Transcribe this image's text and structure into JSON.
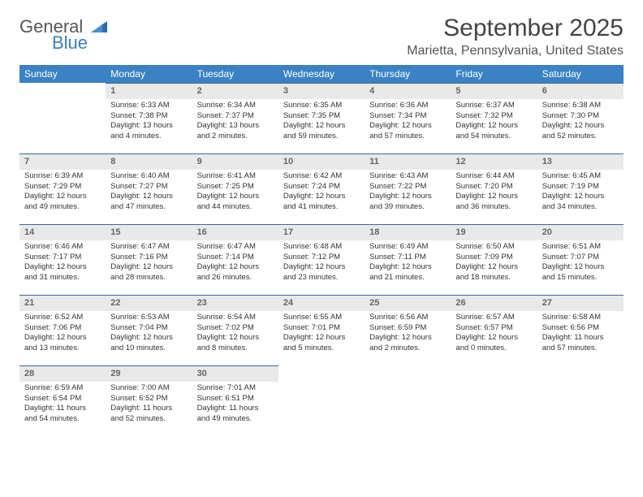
{
  "logo": {
    "word1": "General",
    "word2": "Blue"
  },
  "title": "September 2025",
  "location": "Marietta, Pennsylvania, United States",
  "colors": {
    "header_bg": "#3a82c4",
    "header_text": "#ffffff",
    "daynum_bg": "#e9e9e9",
    "daynum_border": "#3a6a9a",
    "text": "#333333",
    "logo_gray": "#555555",
    "logo_blue": "#3a7ebf"
  },
  "weekdays": [
    "Sunday",
    "Monday",
    "Tuesday",
    "Wednesday",
    "Thursday",
    "Friday",
    "Saturday"
  ],
  "weeks": [
    [
      null,
      {
        "n": "1",
        "sr": "Sunrise: 6:33 AM",
        "ss": "Sunset: 7:38 PM",
        "dl": "Daylight: 13 hours and 4 minutes."
      },
      {
        "n": "2",
        "sr": "Sunrise: 6:34 AM",
        "ss": "Sunset: 7:37 PM",
        "dl": "Daylight: 13 hours and 2 minutes."
      },
      {
        "n": "3",
        "sr": "Sunrise: 6:35 AM",
        "ss": "Sunset: 7:35 PM",
        "dl": "Daylight: 12 hours and 59 minutes."
      },
      {
        "n": "4",
        "sr": "Sunrise: 6:36 AM",
        "ss": "Sunset: 7:34 PM",
        "dl": "Daylight: 12 hours and 57 minutes."
      },
      {
        "n": "5",
        "sr": "Sunrise: 6:37 AM",
        "ss": "Sunset: 7:32 PM",
        "dl": "Daylight: 12 hours and 54 minutes."
      },
      {
        "n": "6",
        "sr": "Sunrise: 6:38 AM",
        "ss": "Sunset: 7:30 PM",
        "dl": "Daylight: 12 hours and 52 minutes."
      }
    ],
    [
      {
        "n": "7",
        "sr": "Sunrise: 6:39 AM",
        "ss": "Sunset: 7:29 PM",
        "dl": "Daylight: 12 hours and 49 minutes."
      },
      {
        "n": "8",
        "sr": "Sunrise: 6:40 AM",
        "ss": "Sunset: 7:27 PM",
        "dl": "Daylight: 12 hours and 47 minutes."
      },
      {
        "n": "9",
        "sr": "Sunrise: 6:41 AM",
        "ss": "Sunset: 7:25 PM",
        "dl": "Daylight: 12 hours and 44 minutes."
      },
      {
        "n": "10",
        "sr": "Sunrise: 6:42 AM",
        "ss": "Sunset: 7:24 PM",
        "dl": "Daylight: 12 hours and 41 minutes."
      },
      {
        "n": "11",
        "sr": "Sunrise: 6:43 AM",
        "ss": "Sunset: 7:22 PM",
        "dl": "Daylight: 12 hours and 39 minutes."
      },
      {
        "n": "12",
        "sr": "Sunrise: 6:44 AM",
        "ss": "Sunset: 7:20 PM",
        "dl": "Daylight: 12 hours and 36 minutes."
      },
      {
        "n": "13",
        "sr": "Sunrise: 6:45 AM",
        "ss": "Sunset: 7:19 PM",
        "dl": "Daylight: 12 hours and 34 minutes."
      }
    ],
    [
      {
        "n": "14",
        "sr": "Sunrise: 6:46 AM",
        "ss": "Sunset: 7:17 PM",
        "dl": "Daylight: 12 hours and 31 minutes."
      },
      {
        "n": "15",
        "sr": "Sunrise: 6:47 AM",
        "ss": "Sunset: 7:16 PM",
        "dl": "Daylight: 12 hours and 28 minutes."
      },
      {
        "n": "16",
        "sr": "Sunrise: 6:47 AM",
        "ss": "Sunset: 7:14 PM",
        "dl": "Daylight: 12 hours and 26 minutes."
      },
      {
        "n": "17",
        "sr": "Sunrise: 6:48 AM",
        "ss": "Sunset: 7:12 PM",
        "dl": "Daylight: 12 hours and 23 minutes."
      },
      {
        "n": "18",
        "sr": "Sunrise: 6:49 AM",
        "ss": "Sunset: 7:11 PM",
        "dl": "Daylight: 12 hours and 21 minutes."
      },
      {
        "n": "19",
        "sr": "Sunrise: 6:50 AM",
        "ss": "Sunset: 7:09 PM",
        "dl": "Daylight: 12 hours and 18 minutes."
      },
      {
        "n": "20",
        "sr": "Sunrise: 6:51 AM",
        "ss": "Sunset: 7:07 PM",
        "dl": "Daylight: 12 hours and 15 minutes."
      }
    ],
    [
      {
        "n": "21",
        "sr": "Sunrise: 6:52 AM",
        "ss": "Sunset: 7:06 PM",
        "dl": "Daylight: 12 hours and 13 minutes."
      },
      {
        "n": "22",
        "sr": "Sunrise: 6:53 AM",
        "ss": "Sunset: 7:04 PM",
        "dl": "Daylight: 12 hours and 10 minutes."
      },
      {
        "n": "23",
        "sr": "Sunrise: 6:54 AM",
        "ss": "Sunset: 7:02 PM",
        "dl": "Daylight: 12 hours and 8 minutes."
      },
      {
        "n": "24",
        "sr": "Sunrise: 6:55 AM",
        "ss": "Sunset: 7:01 PM",
        "dl": "Daylight: 12 hours and 5 minutes."
      },
      {
        "n": "25",
        "sr": "Sunrise: 6:56 AM",
        "ss": "Sunset: 6:59 PM",
        "dl": "Daylight: 12 hours and 2 minutes."
      },
      {
        "n": "26",
        "sr": "Sunrise: 6:57 AM",
        "ss": "Sunset: 6:57 PM",
        "dl": "Daylight: 12 hours and 0 minutes."
      },
      {
        "n": "27",
        "sr": "Sunrise: 6:58 AM",
        "ss": "Sunset: 6:56 PM",
        "dl": "Daylight: 11 hours and 57 minutes."
      }
    ],
    [
      {
        "n": "28",
        "sr": "Sunrise: 6:59 AM",
        "ss": "Sunset: 6:54 PM",
        "dl": "Daylight: 11 hours and 54 minutes."
      },
      {
        "n": "29",
        "sr": "Sunrise: 7:00 AM",
        "ss": "Sunset: 6:52 PM",
        "dl": "Daylight: 11 hours and 52 minutes."
      },
      {
        "n": "30",
        "sr": "Sunrise: 7:01 AM",
        "ss": "Sunset: 6:51 PM",
        "dl": "Daylight: 11 hours and 49 minutes."
      },
      null,
      null,
      null,
      null
    ]
  ]
}
